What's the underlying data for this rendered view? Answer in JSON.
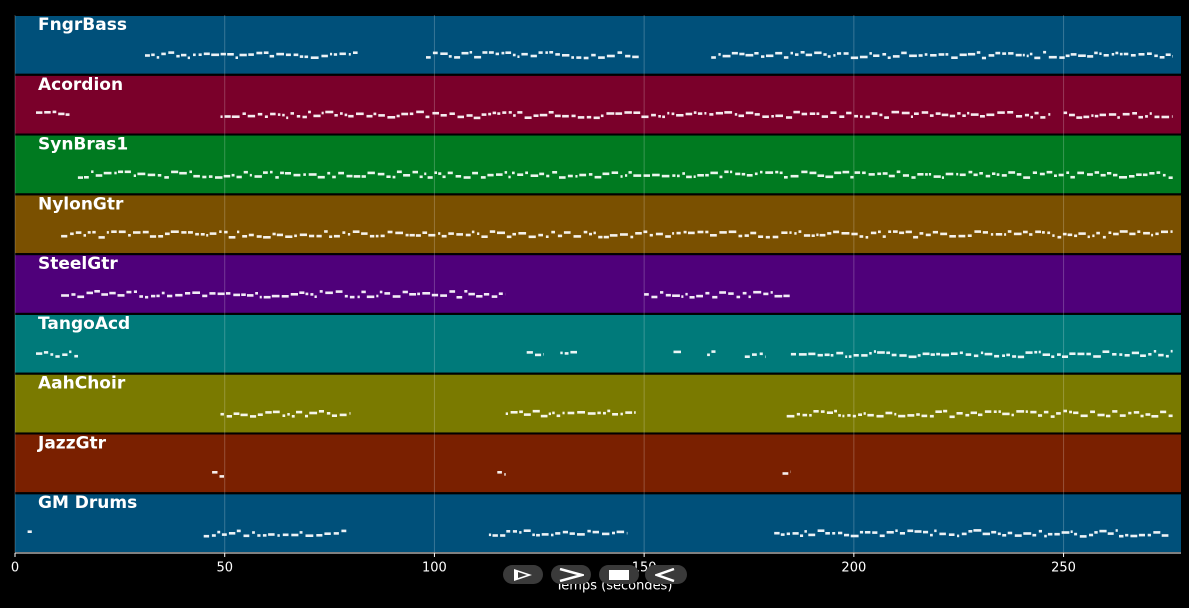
{
  "chart_data": {
    "type": "piano-roll",
    "title": "",
    "xlabel": "Temps (secondes)",
    "ylabel": "",
    "xlim": [
      0,
      278
    ],
    "xticks": [
      0,
      50,
      100,
      150,
      200,
      250
    ],
    "grid": true,
    "tracks": [
      {
        "name": "FngrBass",
        "color": "#00507a",
        "segments": [
          [
            31,
            82
          ],
          [
            98,
            149
          ],
          [
            166,
            276
          ]
        ]
      },
      {
        "name": "Acordion",
        "color": "#7a002a",
        "segments": [
          [
            5,
            13
          ],
          [
            49,
            247
          ],
          [
            250,
            276
          ]
        ]
      },
      {
        "name": "SynBras1",
        "color": "#007a20",
        "segments": [
          [
            15,
            276
          ]
        ]
      },
      {
        "name": "NylonGtr",
        "color": "#7a5000",
        "segments": [
          [
            11,
            276
          ]
        ]
      },
      {
        "name": "SteelGtr",
        "color": "#4f007a",
        "segments": [
          [
            11,
            117
          ],
          [
            150,
            185
          ]
        ]
      },
      {
        "name": "TangoAcd",
        "color": "#007a7a",
        "segments": [
          [
            5,
            15
          ],
          [
            122,
            126
          ],
          [
            130,
            134
          ],
          [
            157,
            159
          ],
          [
            165,
            167
          ],
          [
            174,
            179
          ],
          [
            185,
            276
          ]
        ]
      },
      {
        "name": "AahChoir",
        "color": "#7a7a00",
        "segments": [
          [
            49,
            80
          ],
          [
            117,
            148
          ],
          [
            184,
            276
          ]
        ]
      },
      {
        "name": "JazzGtr",
        "color": "#7a2000",
        "segments": [
          [
            47,
            50
          ],
          [
            115,
            117
          ],
          [
            183,
            185
          ]
        ]
      },
      {
        "name": "GM Drums",
        "color": "#00507a",
        "segments": [
          [
            3,
            4
          ],
          [
            45,
            79
          ],
          [
            113,
            146
          ],
          [
            181,
            275
          ]
        ]
      }
    ]
  },
  "controls": [
    {
      "name": "play-icon"
    },
    {
      "name": "forward-icon"
    },
    {
      "name": "stop-icon"
    },
    {
      "name": "back-icon"
    }
  ]
}
